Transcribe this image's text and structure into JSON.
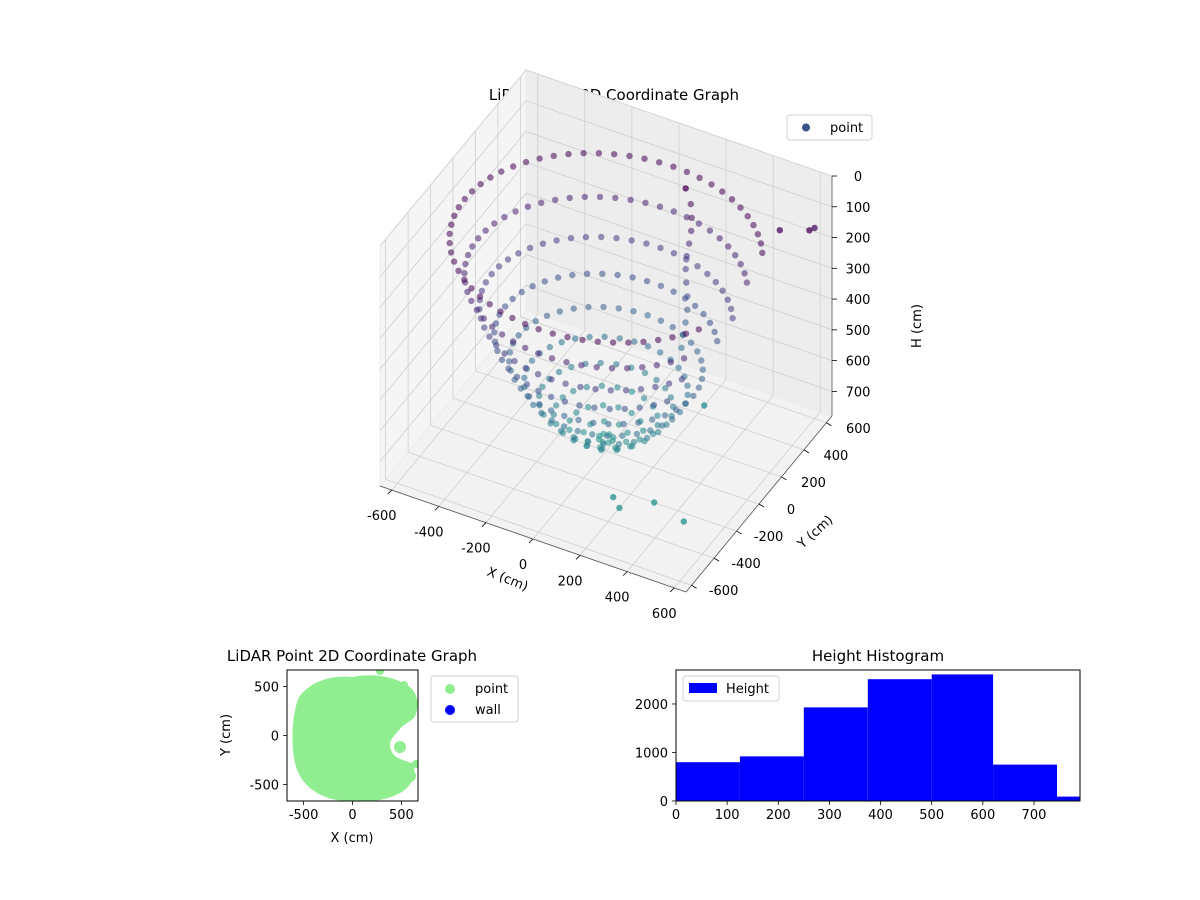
{
  "chart_data": [
    {
      "type": "scatter3d",
      "title": "LiDAR Point 3D Coordinate Graph",
      "xlabel": "X (cm)",
      "ylabel": "Y (cm)",
      "zlabel": "H (cm)",
      "x_ticks": [
        "-600",
        "-400",
        "-200",
        "0",
        "200",
        "400",
        "600"
      ],
      "y_ticks": [
        "-600",
        "-400",
        "-200",
        "0",
        "200",
        "400",
        "600"
      ],
      "z_ticks": [
        "0",
        "100",
        "200",
        "300",
        "400",
        "500",
        "600",
        "700"
      ],
      "xlim": [
        -650,
        650
      ],
      "ylim": [
        -650,
        650
      ],
      "zlim": [
        0,
        780
      ],
      "z_inverted": true,
      "colormap": "viridis",
      "grid": true,
      "legend": {
        "placement": "upper-right",
        "entries": [
          {
            "name": "point",
            "color": "#3b528b"
          }
        ]
      },
      "shape_description": "bowl-shaped point cloud, radius ~600 cm, shallow at rim and deepest near center",
      "sample_points": [
        {
          "x": 100,
          "y": 500,
          "h": 120
        },
        {
          "x": 500,
          "y": 500,
          "h": 150
        },
        {
          "x": 640,
          "y": 470,
          "h": 100
        },
        {
          "x": 600,
          "y": 600,
          "h": 160
        },
        {
          "x": 150,
          "y": -250,
          "h": 780
        },
        {
          "x": 200,
          "y": -300,
          "h": 780
        },
        {
          "x": 300,
          "y": -200,
          "h": 780
        },
        {
          "x": 450,
          "y": -250,
          "h": 780
        },
        {
          "x": 250,
          "y": 350,
          "h": 720
        }
      ]
    },
    {
      "type": "scatter",
      "title": "LiDAR Point 2D Coordinate Graph",
      "xlabel": "X (cm)",
      "ylabel": "Y (cm)",
      "x_ticks": [
        "-500",
        "0",
        "500"
      ],
      "y_ticks": [
        "-500",
        "0",
        "500"
      ],
      "xlim": [
        -670,
        670
      ],
      "ylim": [
        -670,
        670
      ],
      "legend": {
        "placement": "outside-right",
        "entries": [
          {
            "name": "point",
            "color": "#90ee90"
          },
          {
            "name": "wall",
            "color": "#0000ff"
          }
        ]
      }
    },
    {
      "type": "bar",
      "title": "Height Histogram",
      "xlabel": "",
      "ylabel": "",
      "x_ticks": [
        "0",
        "100",
        "200",
        "300",
        "400",
        "500",
        "600",
        "700"
      ],
      "y_ticks": [
        "0",
        "1000",
        "2000"
      ],
      "xlim": [
        0,
        790
      ],
      "ylim": [
        0,
        2700
      ],
      "bar_color": "#0000ff",
      "legend": {
        "placement": "upper-left",
        "entries": [
          {
            "name": "Height",
            "color": "#0000ff"
          }
        ]
      },
      "bins": [
        {
          "from": 0,
          "to": 125,
          "count": 800
        },
        {
          "from": 125,
          "to": 250,
          "count": 920
        },
        {
          "from": 250,
          "to": 375,
          "count": 1930
        },
        {
          "from": 375,
          "to": 500,
          "count": 2510
        },
        {
          "from": 500,
          "to": 620,
          "count": 2610
        },
        {
          "from": 620,
          "to": 745,
          "count": 750
        },
        {
          "from": 745,
          "to": 790,
          "count": 90
        }
      ]
    }
  ]
}
